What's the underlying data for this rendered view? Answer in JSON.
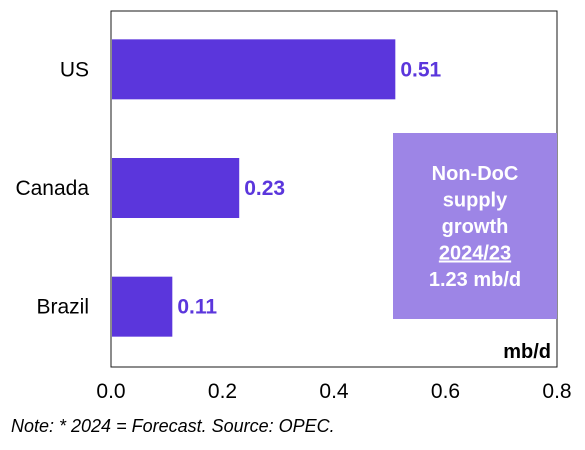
{
  "chart_data": {
    "type": "bar",
    "orientation": "horizontal",
    "categories": [
      "US",
      "Canada",
      "Brazil"
    ],
    "values": [
      0.51,
      0.23,
      0.11
    ],
    "data_labels": [
      "0.51",
      "0.23",
      "0.11"
    ],
    "xlim": [
      0,
      0.8
    ],
    "x_ticks": [
      0.0,
      0.2,
      0.4,
      0.6,
      0.8
    ],
    "x_tick_labels": [
      "0.0",
      "0.2",
      "0.4",
      "0.6",
      "0.8"
    ],
    "unit_label": "mb/d",
    "grid": false,
    "bar_color": "#5b36dc",
    "label_color": "#5b36dc",
    "callout": {
      "lines": [
        "Non-DoC",
        "supply",
        "growth",
        "2024/23",
        "1.23 mb/d"
      ],
      "underlined_line": "2024/23",
      "background": "#9d85e6",
      "text_color": "#ffffff"
    }
  },
  "note": "Note: * 2024 = Forecast. Source: OPEC."
}
